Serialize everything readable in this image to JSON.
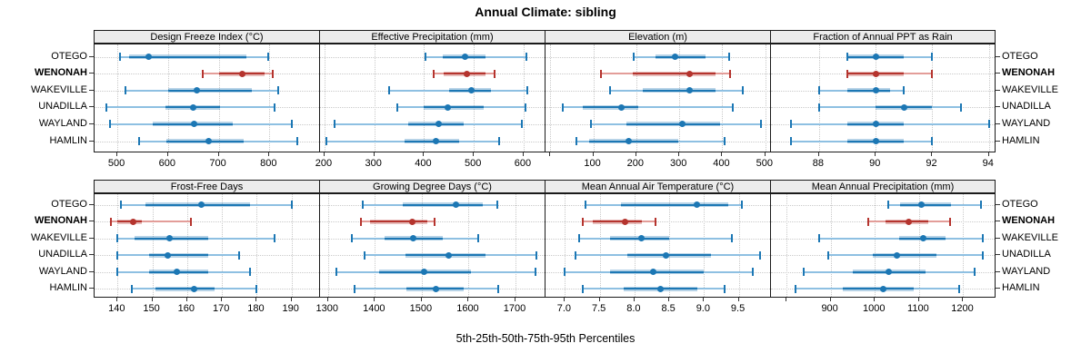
{
  "title": "Annual Climate: sibling",
  "footer": "5th-25th-50th-75th-95th Percentiles",
  "percentiles": [
    "5th",
    "25th",
    "50th",
    "75th",
    "95th"
  ],
  "locations": [
    "OTEGO",
    "WENONAH",
    "WAKEVILLE",
    "UNADILLA",
    "WAYLAND",
    "HAMLIN"
  ],
  "highlight_location": "WENONAH",
  "colors": {
    "blue_main": "#1c77b4",
    "blue_light": "#8ec0e2",
    "blue_band": "rgba(31,119,180,0.32)",
    "red_main": "#b5342e",
    "red_light": "#e39d99",
    "red_band": "rgba(181,52,46,0.32)",
    "header_bg": "#ececec",
    "grid": "#c9c9c9",
    "border": "#1a1a1a"
  },
  "chart_data": [
    {
      "type": "dotplot-percentile",
      "title": "Design Freeze Index (°C)",
      "grid_row": 0,
      "xlim": [
        455,
        898
      ],
      "ticks": [
        {
          "v": 500,
          "label": "500"
        },
        {
          "v": 600,
          "label": "600"
        },
        {
          "v": 700,
          "label": "700"
        },
        {
          "v": 800,
          "label": "800"
        }
      ],
      "series": [
        {
          "location": "OTEGO",
          "values": [
            505,
            524,
            562,
            755,
            797
          ]
        },
        {
          "location": "WENONAH",
          "values": [
            668,
            700,
            747,
            791,
            806
          ]
        },
        {
          "location": "WAKEVILLE",
          "values": [
            516,
            600,
            656,
            765,
            817
          ]
        },
        {
          "location": "UNADILLA",
          "values": [
            478,
            595,
            650,
            703,
            810
          ]
        },
        {
          "location": "WAYLAND",
          "values": [
            486,
            570,
            652,
            727,
            845
          ]
        },
        {
          "location": "HAMLIN",
          "values": [
            542,
            597,
            680,
            750,
            855
          ]
        }
      ]
    },
    {
      "type": "dotplot-percentile",
      "title": "Effective Precipitation (mm)",
      "grid_row": 0,
      "xlim": [
        191,
        642
      ],
      "ticks": [
        {
          "v": 200,
          "label": "200"
        },
        {
          "v": 300,
          "label": "300"
        },
        {
          "v": 400,
          "label": "400"
        },
        {
          "v": 500,
          "label": "500"
        },
        {
          "v": 600,
          "label": "600"
        }
      ],
      "series": [
        {
          "location": "OTEGO",
          "values": [
            402,
            438,
            482,
            524,
            605
          ]
        },
        {
          "location": "WENONAH",
          "values": [
            419,
            440,
            485,
            523,
            541
          ]
        },
        {
          "location": "WAKEVILLE",
          "values": [
            330,
            450,
            495,
            535,
            607
          ]
        },
        {
          "location": "UNADILLA",
          "values": [
            347,
            400,
            447,
            520,
            604
          ]
        },
        {
          "location": "WAYLAND",
          "values": [
            221,
            368,
            430,
            480,
            597
          ]
        },
        {
          "location": "HAMLIN",
          "values": [
            203,
            360,
            424,
            470,
            551
          ]
        }
      ]
    },
    {
      "type": "dotplot-percentile",
      "title": "Elevation (m)",
      "grid_row": 0,
      "xlim": [
        -11,
        511
      ],
      "ticks": [
        {
          "v": 0,
          "label": ""
        },
        {
          "v": 100,
          "label": "100"
        },
        {
          "v": 200,
          "label": "200"
        },
        {
          "v": 300,
          "label": "300"
        },
        {
          "v": 400,
          "label": "400"
        },
        {
          "v": 500,
          "label": "500"
        }
      ],
      "series": [
        {
          "location": "OTEGO",
          "values": [
            195,
            244,
            291,
            362,
            415
          ]
        },
        {
          "location": "WENONAH",
          "values": [
            117,
            192,
            324,
            384,
            419
          ]
        },
        {
          "location": "WAKEVILLE",
          "values": [
            140,
            215,
            325,
            385,
            448
          ]
        },
        {
          "location": "UNADILLA",
          "values": [
            30,
            75,
            165,
            205,
            425
          ]
        },
        {
          "location": "WAYLAND",
          "values": [
            94,
            177,
            307,
            395,
            490
          ]
        },
        {
          "location": "HAMLIN",
          "values": [
            61,
            90,
            182,
            297,
            405
          ]
        }
      ]
    },
    {
      "type": "dotplot-percentile",
      "title": "Fraction of Annual PPT as Rain",
      "grid_row": 0,
      "xlim": [
        86.3,
        94.2
      ],
      "ticks": [
        {
          "v": 88,
          "label": "88"
        },
        {
          "v": 90,
          "label": "90"
        },
        {
          "v": 92,
          "label": "92"
        },
        {
          "v": 94,
          "label": "94"
        }
      ],
      "series": [
        {
          "location": "OTEGO",
          "values": [
            89,
            89,
            90,
            91,
            92
          ]
        },
        {
          "location": "WENONAH",
          "values": [
            89,
            89,
            90,
            91,
            92
          ]
        },
        {
          "location": "WAKEVILLE",
          "values": [
            88,
            89,
            90,
            90.5,
            91
          ]
        },
        {
          "location": "UNADILLA",
          "values": [
            88,
            90,
            91,
            92,
            93
          ]
        },
        {
          "location": "WAYLAND",
          "values": [
            87,
            89,
            90,
            91,
            94
          ]
        },
        {
          "location": "HAMLIN",
          "values": [
            87,
            89,
            90,
            91,
            92
          ]
        }
      ]
    },
    {
      "type": "dotplot-percentile",
      "title": "Frost-Free Days",
      "grid_row": 1,
      "xlim": [
        133.4,
        197.9
      ],
      "ticks": [
        {
          "v": 140,
          "label": "140"
        },
        {
          "v": 150,
          "label": "150"
        },
        {
          "v": 160,
          "label": "160"
        },
        {
          "v": 170,
          "label": "170"
        },
        {
          "v": 180,
          "label": "180"
        },
        {
          "v": 190,
          "label": "190"
        }
      ],
      "series": [
        {
          "location": "OTEGO",
          "values": [
            141,
            148,
            164,
            178,
            190
          ]
        },
        {
          "location": "WENONAH",
          "values": [
            138,
            140,
            144.5,
            147,
            161
          ]
        },
        {
          "location": "WAKEVILLE",
          "values": [
            140,
            145,
            155,
            166,
            185
          ]
        },
        {
          "location": "UNADILLA",
          "values": [
            140,
            149,
            154.5,
            166,
            175
          ]
        },
        {
          "location": "WAYLAND",
          "values": [
            140,
            149,
            157,
            166,
            178
          ]
        },
        {
          "location": "HAMLIN",
          "values": [
            144,
            151,
            162,
            168,
            180
          ]
        }
      ]
    },
    {
      "type": "dotplot-percentile",
      "title": "Growing Degree Days (°C)",
      "grid_row": 1,
      "xlim": [
        1283,
        1762
      ],
      "ticks": [
        {
          "v": 1300,
          "label": "1300"
        },
        {
          "v": 1400,
          "label": "1400"
        },
        {
          "v": 1500,
          "label": "1500"
        },
        {
          "v": 1600,
          "label": "1600"
        },
        {
          "v": 1700,
          "label": "1700"
        }
      ],
      "series": [
        {
          "location": "OTEGO",
          "values": [
            1375,
            1460,
            1573,
            1630,
            1662
          ]
        },
        {
          "location": "WENONAH",
          "values": [
            1370,
            1390,
            1480,
            1512,
            1528
          ]
        },
        {
          "location": "WAKEVILLE",
          "values": [
            1350,
            1420,
            1482,
            1545,
            1620
          ]
        },
        {
          "location": "UNADILLA",
          "values": [
            1378,
            1465,
            1557,
            1635,
            1745
          ]
        },
        {
          "location": "WAYLAND",
          "values": [
            1318,
            1410,
            1505,
            1605,
            1743
          ]
        },
        {
          "location": "HAMLIN",
          "values": [
            1357,
            1468,
            1531,
            1590,
            1663
          ]
        }
      ]
    },
    {
      "type": "dotplot-percentile",
      "title": "Mean Annual Air Temperature (°C)",
      "grid_row": 1,
      "xlim": [
        6.72,
        9.95
      ],
      "ticks": [
        {
          "v": 7.0,
          "label": "7.0"
        },
        {
          "v": 7.5,
          "label": "7.5"
        },
        {
          "v": 8.0,
          "label": "8.0"
        },
        {
          "v": 8.5,
          "label": "8.5"
        },
        {
          "v": 9.0,
          "label": "9.0"
        },
        {
          "v": 9.5,
          "label": "9.5"
        }
      ],
      "series": [
        {
          "location": "OTEGO",
          "values": [
            7.3,
            7.8,
            8.9,
            9.35,
            9.55
          ]
        },
        {
          "location": "WENONAH",
          "values": [
            7.25,
            7.4,
            7.87,
            8.1,
            8.3
          ]
        },
        {
          "location": "WAKEVILLE",
          "values": [
            7.2,
            7.65,
            8.1,
            8.5,
            9.4
          ]
        },
        {
          "location": "UNADILLA",
          "values": [
            7.15,
            7.9,
            8.45,
            9.1,
            9.8
          ]
        },
        {
          "location": "WAYLAND",
          "values": [
            7.0,
            7.65,
            8.27,
            9.0,
            9.7
          ]
        },
        {
          "location": "HAMLIN",
          "values": [
            7.25,
            7.85,
            8.37,
            8.9,
            9.3
          ]
        }
      ]
    },
    {
      "type": "dotplot-percentile",
      "title": "Mean Annual Precipitation (mm)",
      "grid_row": 1,
      "xlim": [
        765,
        1271
      ],
      "ticks": [
        {
          "v": 800,
          "label": ""
        },
        {
          "v": 900,
          "label": "900"
        },
        {
          "v": 1000,
          "label": "1000"
        },
        {
          "v": 1100,
          "label": "1100"
        },
        {
          "v": 1200,
          "label": "1200"
        }
      ],
      "series": [
        {
          "location": "OTEGO",
          "values": [
            1030,
            1058,
            1105,
            1172,
            1240
          ]
        },
        {
          "location": "WENONAH",
          "values": [
            985,
            1025,
            1077,
            1120,
            1170
          ]
        },
        {
          "location": "WAKEVILLE",
          "values": [
            875,
            1055,
            1110,
            1160,
            1245
          ]
        },
        {
          "location": "UNADILLA",
          "values": [
            895,
            995,
            1050,
            1140,
            1245
          ]
        },
        {
          "location": "WAYLAND",
          "values": [
            840,
            950,
            1032,
            1115,
            1225
          ]
        },
        {
          "location": "HAMLIN",
          "values": [
            820,
            928,
            1020,
            1088,
            1190
          ]
        }
      ]
    }
  ]
}
